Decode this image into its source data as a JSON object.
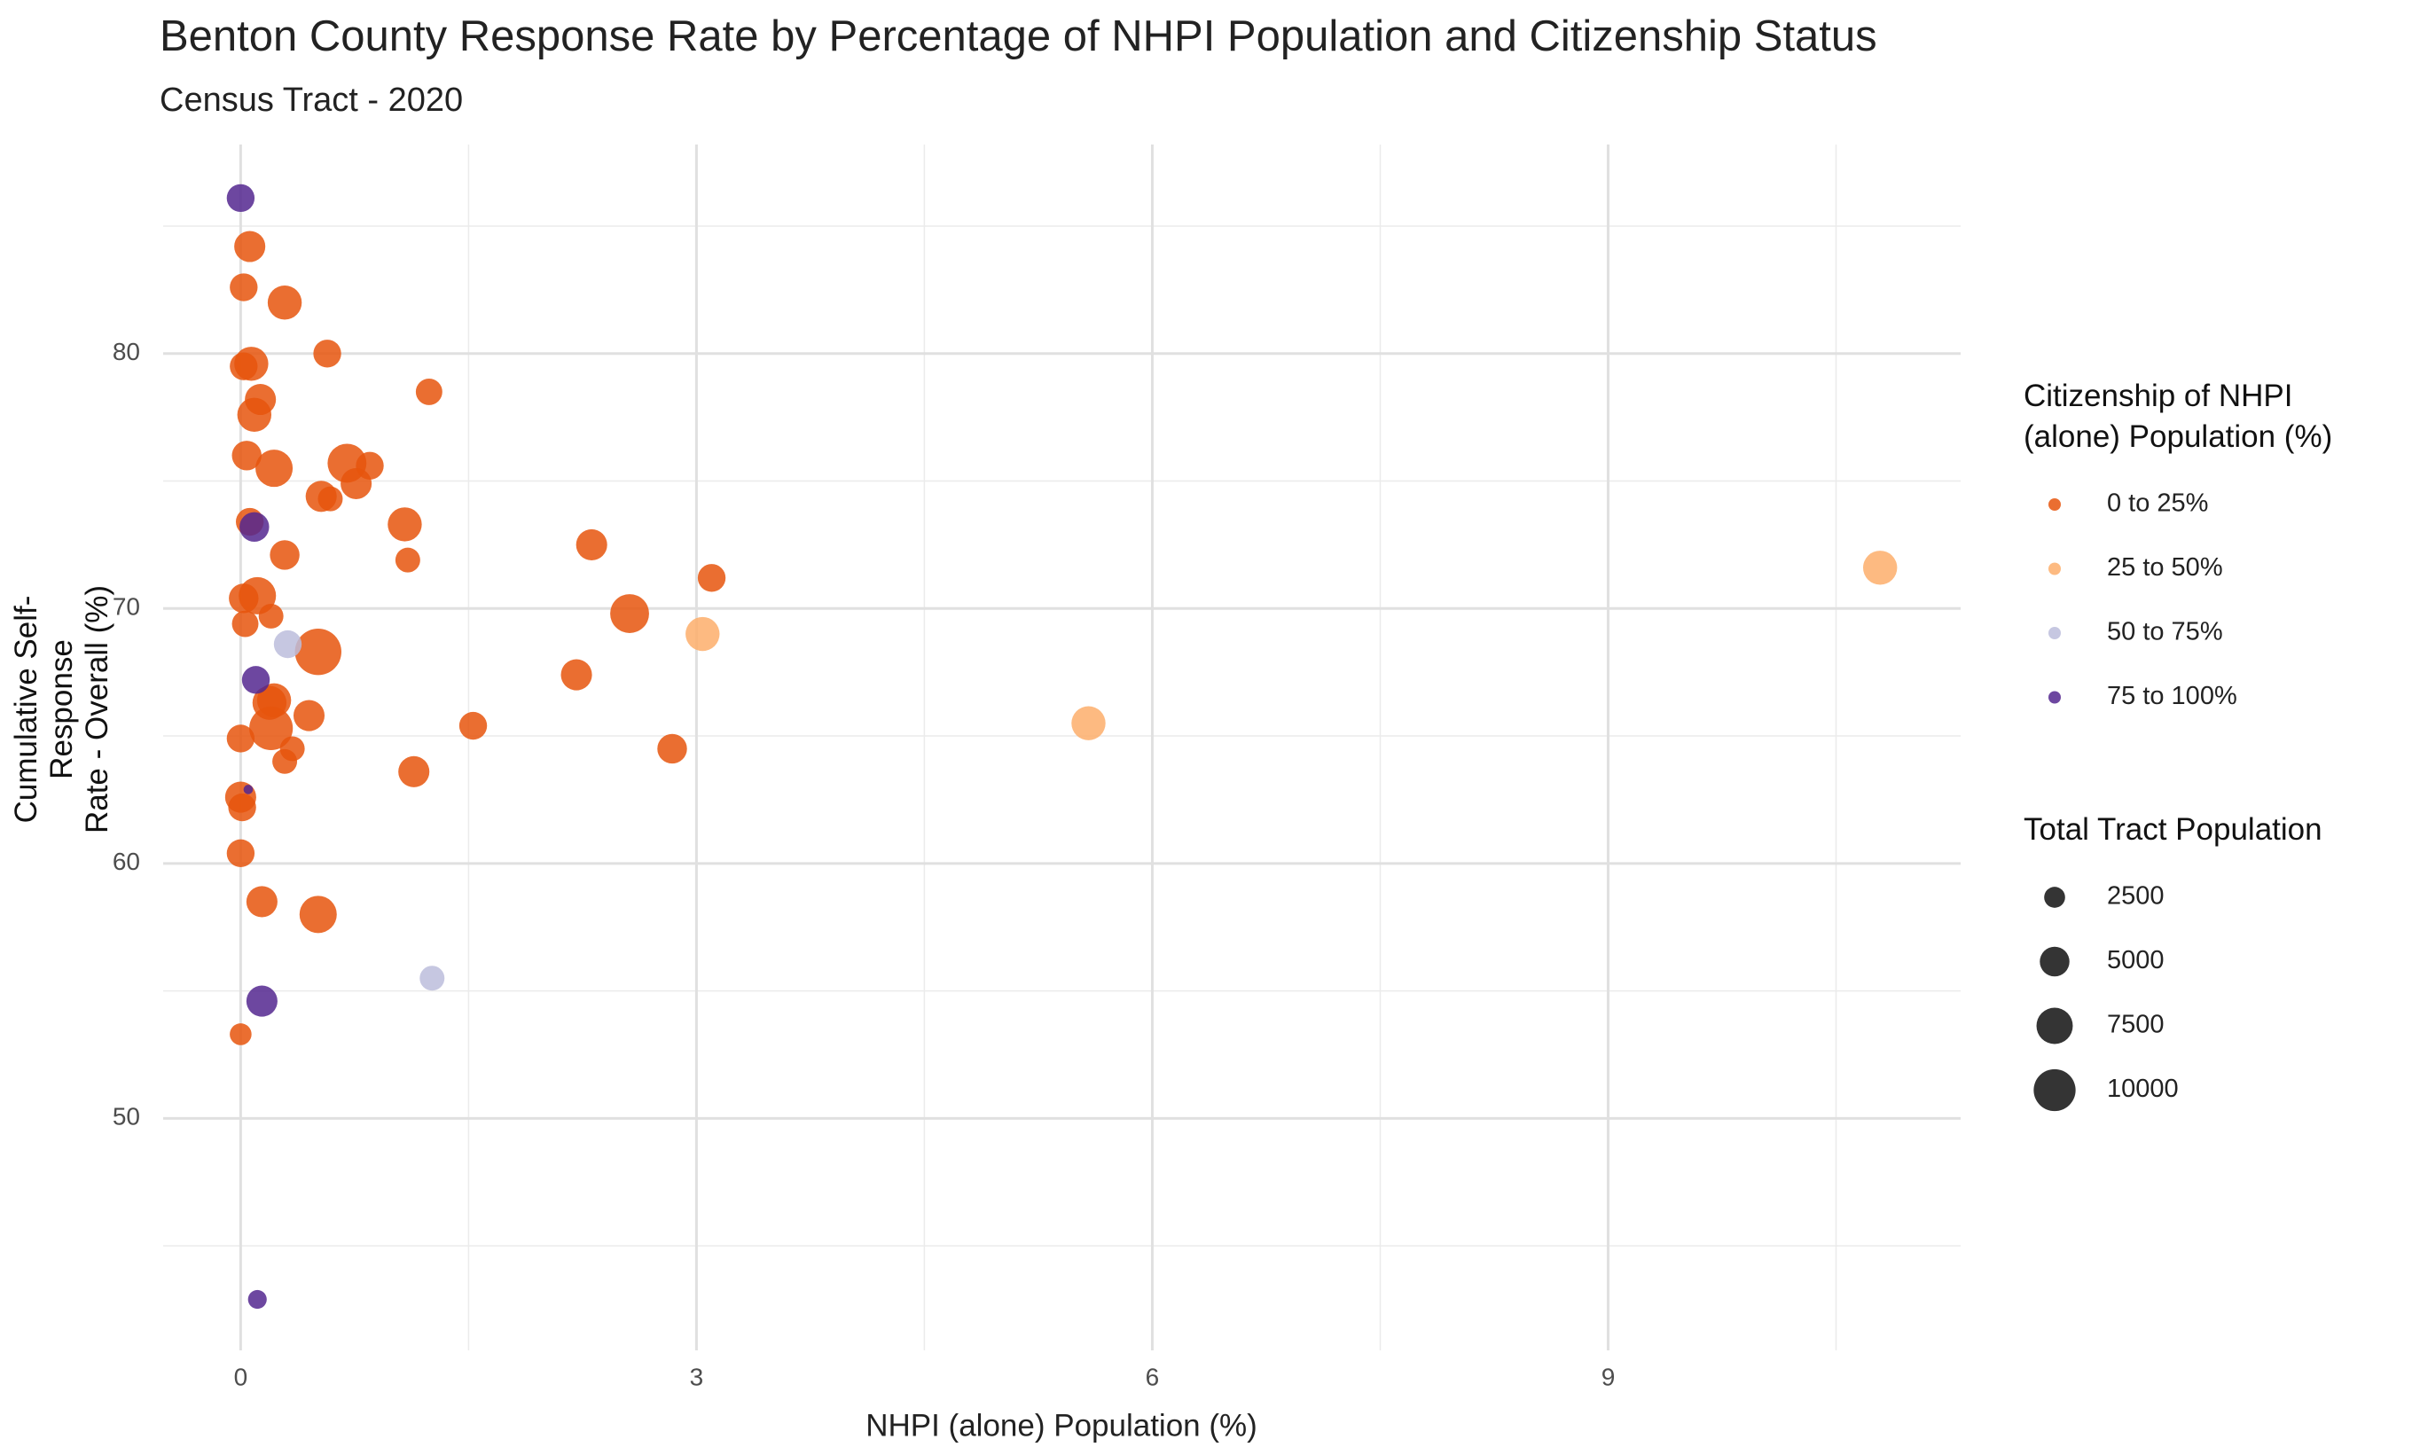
{
  "chart_data": {
    "type": "scatter",
    "title": "Benton County Response Rate by Percentage of NHPI Population and Citizenship Status",
    "subtitle": "Census Tract - 2020",
    "x_label": "NHPI (alone) Population (%)",
    "y_label": "Cumulative Self-Response\nRate - Overall (%)",
    "color_legend_title": "Citizenship of NHPI\n(alone) Population (%)",
    "size_legend_title": "Total Tract Population",
    "size_legend": [
      2500,
      5000,
      7500,
      10000
    ],
    "xlim": [
      -0.51,
      11.32
    ],
    "ylim": [
      40.9,
      88.2
    ],
    "xticks": [
      0,
      3,
      6,
      9
    ],
    "yticks": [
      50,
      60,
      70,
      80
    ],
    "x_minor_grid": [
      1.5,
      4.5,
      7.5,
      10.5
    ],
    "y_minor_grid": [
      45,
      55,
      65,
      75,
      85
    ],
    "grid": true,
    "series": [
      {
        "name": "0 to 25%",
        "color": "#e6550d",
        "x": [
          0.06,
          0.02,
          0.29,
          0.57,
          0.02,
          0.07,
          1.24,
          0.13,
          0.09,
          0.04,
          0.22,
          0.7,
          0.85,
          0.76,
          0.53,
          0.59,
          0.06,
          1.08,
          0.29,
          1.1,
          2.31,
          3.1,
          0.02,
          0.11,
          2.56,
          0.03,
          0.2,
          0.51,
          2.21,
          0.19,
          0.22,
          0.2,
          0.45,
          1.53,
          0,
          0.34,
          2.84,
          0.29,
          1.14,
          0,
          0.01,
          0,
          0.14,
          0.51,
          0
        ],
        "values": [
          84.2,
          82.6,
          82.0,
          80.0,
          79.5,
          79.6,
          78.5,
          78.2,
          77.6,
          76.0,
          75.5,
          75.7,
          75.6,
          74.9,
          74.4,
          74.3,
          73.4,
          73.3,
          72.1,
          71.9,
          72.5,
          71.2,
          70.4,
          70.5,
          69.8,
          69.4,
          69.7,
          68.3,
          67.4,
          66.3,
          66.4,
          65.3,
          65.8,
          65.4,
          64.9,
          64.5,
          64.5,
          64.0,
          63.6,
          62.6,
          62.2,
          60.4,
          58.5,
          58.0,
          53.3
        ],
        "sizes": [
          5500,
          4400,
          6600,
          4400,
          4400,
          6600,
          4000,
          5500,
          6600,
          5000,
          7900,
          8600,
          4400,
          5500,
          5500,
          3500,
          4400,
          6600,
          5000,
          3500,
          5500,
          4400,
          5000,
          7900,
          8600,
          4000,
          3500,
          12300,
          5500,
          6600,
          6600,
          10800,
          5500,
          4400,
          4400,
          3500,
          5000,
          3500,
          5500,
          5500,
          4400,
          4400,
          5500,
          7900,
          2700
        ]
      },
      {
        "name": "25 to 50%",
        "color": "#fdae6b",
        "x": [
          10.79,
          3.04,
          5.58
        ],
        "values": [
          71.6,
          69.0,
          65.5
        ],
        "sizes": [
          6600,
          6600,
          6600
        ]
      },
      {
        "name": "50 to 75%",
        "color": "#bcbddc",
        "x": [
          0.31,
          1.26
        ],
        "values": [
          68.6,
          55.5
        ],
        "sizes": [
          4400,
          3500
        ]
      },
      {
        "name": "75 to 100%",
        "color": "#54278f",
        "x": [
          0,
          0.09,
          0.1,
          0.14,
          0.11,
          0.05
        ],
        "values": [
          86.1,
          73.2,
          67.2,
          54.6,
          42.9,
          62.9
        ],
        "sizes": [
          4400,
          5000,
          4400,
          5500,
          2000,
          500
        ]
      }
    ]
  }
}
